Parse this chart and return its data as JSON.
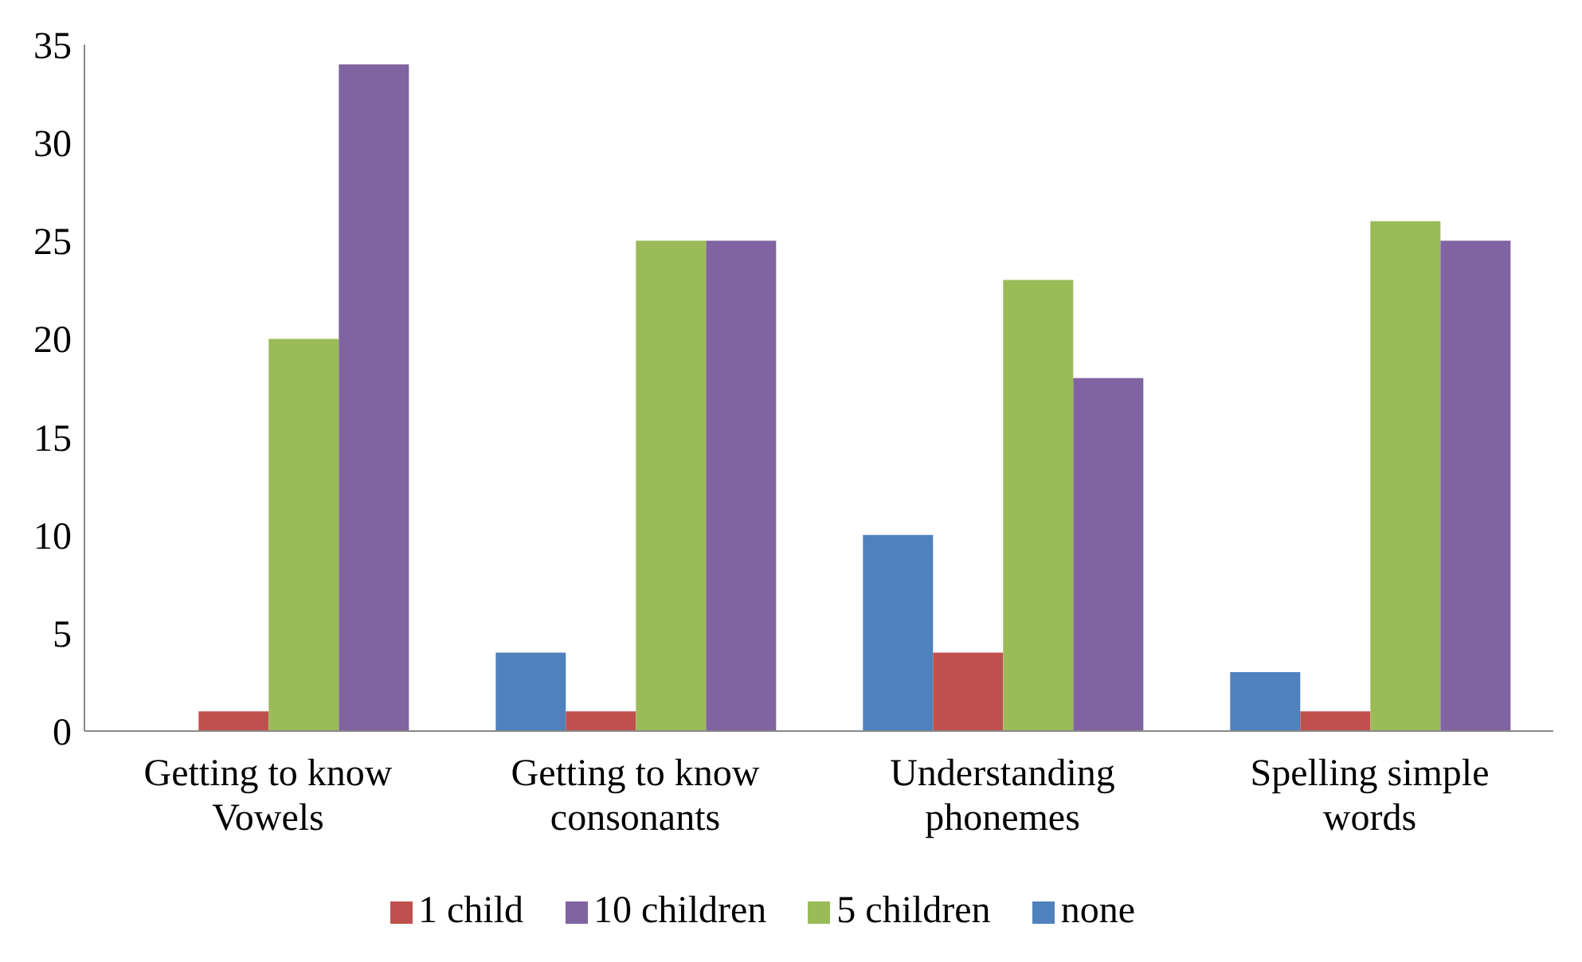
{
  "chart_data": {
    "type": "bar",
    "categories": [
      "Getting to know Vowels",
      "Getting to know consonants",
      "Understanding phonemes",
      "Spelling simple words"
    ],
    "series": [
      {
        "name": "none",
        "color": "#4f81bd",
        "values": [
          0,
          4,
          10,
          3
        ]
      },
      {
        "name": "1 child",
        "color": "#c0504d",
        "values": [
          1,
          1,
          4,
          1
        ]
      },
      {
        "name": "5 children",
        "color": "#9bbb59",
        "values": [
          20,
          25,
          23,
          26
        ]
      },
      {
        "name": "10 children",
        "color": "#8064a2",
        "values": [
          34,
          25,
          18,
          25
        ]
      }
    ],
    "ylim": [
      0,
      35
    ],
    "yticks": [
      0,
      5,
      10,
      15,
      20,
      25,
      30,
      35
    ],
    "grid": false,
    "legend": "bottom"
  }
}
